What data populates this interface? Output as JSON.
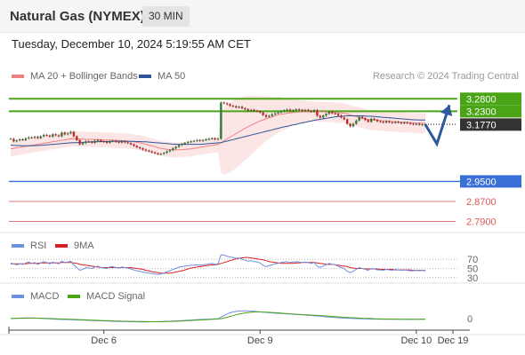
{
  "header": {
    "title": "Natural Gas (NYMEX)",
    "timeframe": "30 MIN",
    "datetime": "Tuesday, December 10, 2024 5:19:55 AM CET",
    "credit": "Research © 2024 Trading Central"
  },
  "legend": {
    "ma20_label": "MA 20 + Bollinger Bands",
    "ma20_color": "#f08080",
    "ma50_label": "MA 50",
    "ma50_color": "#2d5597"
  },
  "chart_data": [
    {
      "type": "candlestick",
      "panel": "price",
      "ylim": [
        2.76,
        3.32
      ],
      "x_ticks": [
        "Dec 6",
        "Dec 9",
        "Dec 10",
        "Dec 19"
      ],
      "levels": [
        {
          "label": "3.2800",
          "value": 3.28,
          "color": "#4aa516",
          "kind": "resistance",
          "badge": "green"
        },
        {
          "label": "3.2300",
          "value": 3.23,
          "color": "#4aa516",
          "kind": "resistance",
          "badge": "green"
        },
        {
          "label": "3.1770",
          "value": 3.177,
          "color": "#333333",
          "kind": "last_price",
          "badge": "dark"
        },
        {
          "label": "2.9500",
          "value": 2.95,
          "color": "#3a6fd8",
          "kind": "pivot",
          "badge": "blue"
        },
        {
          "label": "2.8700",
          "value": 2.87,
          "color": "#e07b7b",
          "kind": "support",
          "badge": "none"
        },
        {
          "label": "2.7900",
          "value": 2.79,
          "color": "#e07b7b",
          "kind": "support",
          "badge": "none"
        },
        {
          "label": "",
          "value": 3.18,
          "color": "#999999",
          "kind": "current",
          "badge": "dotted"
        }
      ],
      "close": [
        3.12,
        3.11,
        3.114,
        3.118,
        3.115,
        3.122,
        3.126,
        3.124,
        3.128,
        3.123,
        3.13,
        3.136,
        3.133,
        3.129,
        3.138,
        3.134,
        3.13,
        3.145,
        3.138,
        3.142,
        3.148,
        3.13,
        3.115,
        3.098,
        3.103,
        3.11,
        3.108,
        3.104,
        3.112,
        3.115,
        3.11,
        3.108,
        3.104,
        3.11,
        3.112,
        3.108,
        3.105,
        3.11,
        3.106,
        3.103,
        3.098,
        3.092,
        3.086,
        3.082,
        3.077,
        3.073,
        3.07,
        3.066,
        3.062,
        3.058,
        3.06,
        3.064,
        3.07,
        3.075,
        3.082,
        3.088,
        3.095,
        3.1,
        3.104,
        3.108,
        3.11,
        3.112,
        3.115,
        3.112,
        3.115,
        3.118,
        3.12,
        3.122,
        3.118,
        3.12,
        3.265,
        3.262,
        3.258,
        3.252,
        3.25,
        3.245,
        3.248,
        3.242,
        3.238,
        3.233,
        3.236,
        3.232,
        3.23,
        3.225,
        3.215,
        3.208,
        3.212,
        3.218,
        3.222,
        3.225,
        3.23,
        3.234,
        3.237,
        3.232,
        3.235,
        3.238,
        3.236,
        3.232,
        3.236,
        3.232,
        3.228,
        3.235,
        3.212,
        3.205,
        3.213,
        3.22,
        3.228,
        3.222,
        3.22,
        3.213,
        3.205,
        3.198,
        3.18,
        3.17,
        3.18,
        3.193,
        3.208,
        3.202,
        3.195,
        3.188,
        3.2,
        3.196,
        3.19,
        3.188,
        3.185,
        3.19,
        3.186,
        3.184,
        3.188,
        3.185,
        3.182,
        3.186,
        3.183,
        3.18,
        3.178,
        3.18,
        3.176,
        3.178,
        3.177
      ],
      "ma20": [
        3.08,
        3.082,
        3.084,
        3.086,
        3.088,
        3.09,
        3.092,
        3.094,
        3.096,
        3.098,
        3.1,
        3.102,
        3.104,
        3.106,
        3.108,
        3.11,
        3.112,
        3.114,
        3.116,
        3.118,
        3.12,
        3.12,
        3.12,
        3.119,
        3.119,
        3.118,
        3.118,
        3.118,
        3.117,
        3.117,
        3.116,
        3.116,
        3.115,
        3.115,
        3.114,
        3.114,
        3.113,
        3.113,
        3.112,
        3.111,
        3.11,
        3.108,
        3.106,
        3.104,
        3.101,
        3.098,
        3.095,
        3.092,
        3.089,
        3.085,
        3.082,
        3.08,
        3.078,
        3.077,
        3.076,
        3.076,
        3.076,
        3.077,
        3.078,
        3.079,
        3.08,
        3.082,
        3.084,
        3.086,
        3.088,
        3.09,
        3.092,
        3.094,
        3.096,
        3.098,
        3.105,
        3.112,
        3.12,
        3.127,
        3.134,
        3.141,
        3.148,
        3.155,
        3.162,
        3.168,
        3.174,
        3.18,
        3.186,
        3.191,
        3.196,
        3.2,
        3.204,
        3.208,
        3.212,
        3.216,
        3.218,
        3.22,
        3.222,
        3.224,
        3.225,
        3.226,
        3.227,
        3.228,
        3.228,
        3.229,
        3.229,
        3.229,
        3.229,
        3.228,
        3.228,
        3.227,
        3.227,
        3.226,
        3.225,
        3.224,
        3.223,
        3.222,
        3.219,
        3.215,
        3.212,
        3.209,
        3.206,
        3.203,
        3.2,
        3.197,
        3.196,
        3.195,
        3.194,
        3.193,
        3.192,
        3.191,
        3.19,
        3.189,
        3.188,
        3.187,
        3.186,
        3.185,
        3.185,
        3.184,
        3.184,
        3.183,
        3.183,
        3.182,
        3.182
      ],
      "bb_width": [
        0.03,
        0.03,
        0.03,
        0.03,
        0.03,
        0.03,
        0.03,
        0.03,
        0.03,
        0.03,
        0.03,
        0.03,
        0.03,
        0.03,
        0.03,
        0.03,
        0.03,
        0.03,
        0.03,
        0.03,
        0.03,
        0.03,
        0.03,
        0.03,
        0.03,
        0.03,
        0.03,
        0.03,
        0.03,
        0.03,
        0.03,
        0.03,
        0.03,
        0.03,
        0.03,
        0.03,
        0.03,
        0.03,
        0.03,
        0.03,
        0.03,
        0.03,
        0.03,
        0.03,
        0.03,
        0.03,
        0.03,
        0.03,
        0.03,
        0.03,
        0.03,
        0.03,
        0.03,
        0.03,
        0.03,
        0.03,
        0.03,
        0.03,
        0.03,
        0.03,
        0.03,
        0.03,
        0.03,
        0.03,
        0.03,
        0.03,
        0.03,
        0.03,
        0.03,
        0.03,
        0.12,
        0.135,
        0.14,
        0.14,
        0.14,
        0.138,
        0.136,
        0.132,
        0.128,
        0.124,
        0.118,
        0.112,
        0.106,
        0.1,
        0.095,
        0.09,
        0.085,
        0.08,
        0.076,
        0.072,
        0.068,
        0.064,
        0.06,
        0.056,
        0.052,
        0.05,
        0.048,
        0.046,
        0.044,
        0.042,
        0.04,
        0.04,
        0.04,
        0.04,
        0.04,
        0.04,
        0.04,
        0.04,
        0.04,
        0.04,
        0.04,
        0.04,
        0.04,
        0.04,
        0.04,
        0.04,
        0.04,
        0.04,
        0.04,
        0.04,
        0.04,
        0.04,
        0.04,
        0.04,
        0.04,
        0.04,
        0.04,
        0.04,
        0.04,
        0.04,
        0.04,
        0.04,
        0.04,
        0.04,
        0.04,
        0.04,
        0.04,
        0.04,
        0.04
      ],
      "ma50": [
        3.095,
        3.094,
        3.093,
        3.093,
        3.092,
        3.092,
        3.092,
        3.092,
        3.093,
        3.093,
        3.094,
        3.095,
        3.096,
        3.097,
        3.098,
        3.099,
        3.1,
        3.101,
        3.102,
        3.103,
        3.104,
        3.105,
        3.105,
        3.106,
        3.106,
        3.107,
        3.107,
        3.108,
        3.108,
        3.108,
        3.109,
        3.109,
        3.109,
        3.109,
        3.11,
        3.11,
        3.11,
        3.11,
        3.11,
        3.11,
        3.11,
        3.11,
        3.109,
        3.109,
        3.108,
        3.108,
        3.107,
        3.106,
        3.105,
        3.104,
        3.103,
        3.102,
        3.101,
        3.1,
        3.099,
        3.098,
        3.098,
        3.098,
        3.098,
        3.098,
        3.098,
        3.098,
        3.098,
        3.098,
        3.099,
        3.1,
        3.101,
        3.102,
        3.103,
        3.104,
        3.105,
        3.108,
        3.111,
        3.114,
        3.117,
        3.12,
        3.123,
        3.126,
        3.129,
        3.132,
        3.135,
        3.138,
        3.141,
        3.144,
        3.147,
        3.15,
        3.153,
        3.156,
        3.159,
        3.162,
        3.165,
        3.168,
        3.17,
        3.173,
        3.176,
        3.178,
        3.181,
        3.184,
        3.186,
        3.189,
        3.191,
        3.194,
        3.196,
        3.198,
        3.2,
        3.202,
        3.204,
        3.206,
        3.208,
        3.209,
        3.21,
        3.211,
        3.212,
        3.212,
        3.212,
        3.212,
        3.212,
        3.212,
        3.211,
        3.21,
        3.21,
        3.209,
        3.208,
        3.207,
        3.206,
        3.205,
        3.204,
        3.203,
        3.202,
        3.201,
        3.2,
        3.199,
        3.198,
        3.197,
        3.196,
        3.196,
        3.195,
        3.195,
        3.195
      ],
      "forecast_path": [
        [
          0,
          3.177
        ],
        [
          13,
          3.1
        ],
        [
          27,
          3.255
        ]
      ]
    },
    {
      "type": "line",
      "panel": "rsi",
      "ylim": [
        20,
        80
      ],
      "tick_labels": [
        {
          "label": "70",
          "value": 70
        },
        {
          "label": "50",
          "value": 50
        },
        {
          "label": "30",
          "value": 30
        }
      ],
      "series": [
        {
          "name": "RSI",
          "color": "#6f8fe0"
        },
        {
          "name": "9MA",
          "color": "#d92020"
        }
      ],
      "rsi": [
        62,
        60,
        58,
        60,
        59,
        62,
        64,
        61,
        63,
        59,
        62,
        65,
        63,
        60,
        64,
        62,
        60,
        66,
        63,
        64,
        66,
        58,
        52,
        46,
        48,
        52,
        51,
        50,
        53,
        55,
        52,
        51,
        50,
        53,
        54,
        52,
        51,
        53,
        52,
        51,
        49,
        47,
        45,
        44,
        42,
        41,
        40,
        39,
        38,
        37,
        38,
        40,
        43,
        45,
        48,
        50,
        53,
        54,
        55,
        56,
        57,
        57,
        58,
        57,
        58,
        59,
        60,
        61,
        59,
        60,
        80,
        79,
        77,
        75,
        74,
        72,
        73,
        70,
        68,
        66,
        67,
        65,
        64,
        62,
        57,
        54,
        56,
        58,
        60,
        61,
        63,
        64,
        65,
        63,
        64,
        65,
        64,
        63,
        64,
        63,
        61,
        63,
        55,
        52,
        55,
        58,
        61,
        59,
        58,
        55,
        52,
        50,
        44,
        41,
        44,
        48,
        52,
        50,
        48,
        46,
        50,
        49,
        47,
        47,
        46,
        48,
        47,
        46,
        48,
        47,
        46,
        47,
        46,
        45,
        45,
        46,
        45,
        46,
        45
      ],
      "ma9": [
        60,
        60,
        60,
        60,
        60,
        60,
        61,
        61,
        61,
        61,
        62,
        62,
        62,
        62,
        62,
        62,
        62,
        63,
        63,
        63,
        63,
        62,
        61,
        59,
        58,
        57,
        56,
        55,
        54,
        53,
        52,
        52,
        52,
        52,
        52,
        52,
        52,
        52,
        52,
        52,
        52,
        51,
        50,
        49,
        48,
        46,
        45,
        43,
        42,
        41,
        40,
        40,
        40,
        40,
        41,
        42,
        44,
        45,
        47,
        49,
        51,
        52,
        53,
        54,
        55,
        56,
        57,
        58,
        58,
        59,
        61,
        63,
        65,
        67,
        69,
        71,
        72,
        73,
        74,
        74,
        73,
        72,
        71,
        70,
        69,
        67,
        65,
        64,
        63,
        62,
        61,
        61,
        61,
        61,
        61,
        62,
        62,
        63,
        63,
        63,
        63,
        63,
        62,
        61,
        60,
        59,
        59,
        59,
        58,
        57,
        56,
        55,
        54,
        52,
        51,
        50,
        50,
        50,
        49,
        49,
        49,
        49,
        49,
        48,
        48,
        48,
        48,
        48,
        47,
        47,
        47,
        47,
        47,
        47,
        46,
        46,
        46,
        46,
        46
      ]
    },
    {
      "type": "line",
      "panel": "macd",
      "ylim": [
        -0.02,
        0.03
      ],
      "tick_labels": [
        {
          "label": "0",
          "value": 0
        }
      ],
      "series": [
        {
          "name": "MACD",
          "color": "#6f8fe0"
        },
        {
          "name": "MACD Signal",
          "color": "#4aa516"
        }
      ],
      "macd": [
        0.0005,
        0.0008,
        0.001,
        0.0012,
        0.0014,
        0.0015,
        0.0015,
        0.0014,
        0.0012,
        0.001,
        0.0008,
        0.0005,
        0.0002,
        -0.0001,
        -0.0004,
        -0.0007,
        -0.001,
        -0.0012,
        -0.0013,
        -0.0014,
        -0.0016,
        -0.0018,
        -0.002,
        -0.0022,
        -0.0024,
        -0.0026,
        -0.0028,
        -0.003,
        -0.0032,
        -0.0034,
        -0.0036,
        -0.0038,
        -0.004,
        -0.0042,
        -0.0044,
        -0.0046,
        -0.0047,
        -0.0048,
        -0.0049,
        -0.005,
        -0.0051,
        -0.0052,
        -0.0053,
        -0.0054,
        -0.0054,
        -0.0054,
        -0.0053,
        -0.0052,
        -0.0051,
        -0.005,
        -0.0049,
        -0.0047,
        -0.0045,
        -0.0043,
        -0.004,
        -0.0037,
        -0.0034,
        -0.0031,
        -0.0028,
        -0.0025,
        -0.0022,
        -0.0019,
        -0.0016,
        -0.0013,
        -0.001,
        -0.0008,
        -0.0006,
        -0.0004,
        -0.0002,
        0.0,
        0.003,
        0.006,
        0.0085,
        0.0105,
        0.012,
        0.013,
        0.0137,
        0.014,
        0.014,
        0.0138,
        0.0135,
        0.0131,
        0.0127,
        0.0122,
        0.0117,
        0.0112,
        0.0107,
        0.0103,
        0.0099,
        0.0095,
        0.0092,
        0.0089,
        0.0086,
        0.0083,
        0.008,
        0.0077,
        0.0074,
        0.0071,
        0.0067,
        0.0063,
        0.0059,
        0.0055,
        0.005,
        0.0045,
        0.004,
        0.0035,
        0.0031,
        0.0027,
        0.0023,
        0.0019,
        0.0016,
        0.0013,
        0.001,
        0.0007,
        0.0005,
        0.0003,
        0.0001,
        -0.0001,
        -0.0002,
        -0.0003,
        -0.0004,
        -0.0005,
        -0.0006,
        -0.0007,
        -0.0008,
        -0.0008,
        -0.0009,
        -0.0009,
        -0.0009,
        -0.0009,
        -0.0009,
        -0.0009,
        -0.0009,
        -0.0008,
        -0.0008,
        -0.0008,
        -0.0007,
        -0.0007,
        -0.0007
      ],
      "signal": [
        0.0004,
        0.0006,
        0.0008,
        0.0009,
        0.001,
        0.0011,
        0.0012,
        0.0012,
        0.0012,
        0.0011,
        0.001,
        0.0009,
        0.0007,
        0.0005,
        0.0003,
        0.0001,
        -0.0001,
        -0.0003,
        -0.0005,
        -0.0007,
        -0.0009,
        -0.0011,
        -0.0013,
        -0.0015,
        -0.0017,
        -0.0019,
        -0.0021,
        -0.0023,
        -0.0025,
        -0.0027,
        -0.0029,
        -0.0031,
        -0.0033,
        -0.0035,
        -0.0037,
        -0.0039,
        -0.004,
        -0.0042,
        -0.0043,
        -0.0044,
        -0.0045,
        -0.0046,
        -0.0047,
        -0.0048,
        -0.0049,
        -0.005,
        -0.005,
        -0.0051,
        -0.0051,
        -0.0051,
        -0.0051,
        -0.005,
        -0.0049,
        -0.0048,
        -0.0046,
        -0.0044,
        -0.0042,
        -0.0039,
        -0.0036,
        -0.0033,
        -0.003,
        -0.0027,
        -0.0024,
        -0.0021,
        -0.0018,
        -0.0015,
        -0.0012,
        -0.0009,
        -0.0006,
        -0.0003,
        0.0002,
        0.0012,
        0.0025,
        0.004,
        0.0055,
        0.007,
        0.0083,
        0.0094,
        0.0103,
        0.011,
        0.0115,
        0.0118,
        0.012,
        0.012,
        0.0119,
        0.0117,
        0.0114,
        0.0111,
        0.0108,
        0.0104,
        0.01,
        0.0096,
        0.0092,
        0.0088,
        0.0084,
        0.008,
        0.0077,
        0.0074,
        0.0071,
        0.0068,
        0.0065,
        0.0062,
        0.0059,
        0.0056,
        0.0053,
        0.005,
        0.0046,
        0.0042,
        0.0038,
        0.0034,
        0.003,
        0.0027,
        0.0024,
        0.0021,
        0.0018,
        0.0015,
        0.0012,
        0.001,
        0.0008,
        0.0006,
        0.0004,
        0.0002,
        0.0,
        -0.0002,
        -0.0003,
        -0.0004,
        -0.0005,
        -0.0006,
        -0.0007,
        -0.0007,
        -0.0008,
        -0.0008,
        -0.0008,
        -0.0008,
        -0.0008,
        -0.0008,
        -0.0008,
        -0.0008,
        -0.0008
      ]
    }
  ]
}
